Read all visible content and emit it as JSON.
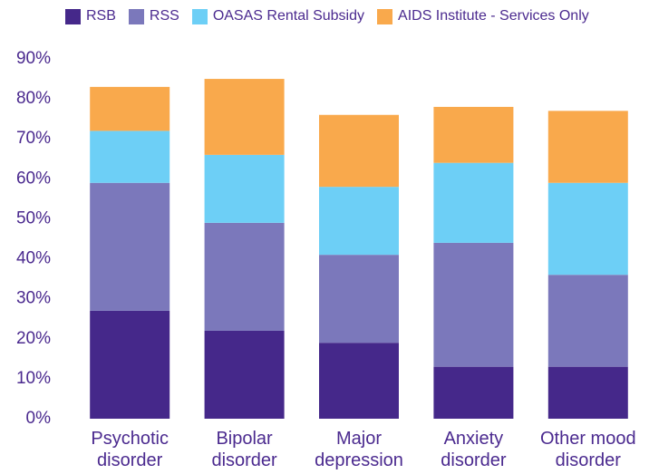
{
  "chart_data": {
    "type": "stacked_bar",
    "categories": [
      "Psychotic disorder",
      "Bipolar disorder",
      "Major depression",
      "Anxiety disorder",
      "Other mood disorder"
    ],
    "series": [
      {
        "name": "RSB",
        "color": "#45288a",
        "values": [
          27,
          22,
          19,
          13,
          13
        ]
      },
      {
        "name": "RSS",
        "color": "#7b78bb",
        "values": [
          32,
          27,
          22,
          31,
          23
        ]
      },
      {
        "name": "OASAS Rental Subsidy",
        "color": "#6dcff6",
        "values": [
          13,
          17,
          17,
          20,
          23
        ]
      },
      {
        "name": "AIDS Institute - Services Only",
        "color": "#f9a94c",
        "values": [
          11,
          19,
          18,
          14,
          18
        ]
      }
    ],
    "ylim": [
      0,
      90
    ],
    "yticks": [
      {
        "value": 0,
        "label": "0%"
      },
      {
        "value": 10,
        "label": "10%"
      },
      {
        "value": 20,
        "label": "20%"
      },
      {
        "value": 30,
        "label": "30%"
      },
      {
        "value": 40,
        "label": "40%"
      },
      {
        "value": 50,
        "label": "50%"
      },
      {
        "value": 60,
        "label": "60%"
      },
      {
        "value": 70,
        "label": "70%"
      },
      {
        "value": 80,
        "label": "80%"
      },
      {
        "value": 90,
        "label": "90%"
      }
    ],
    "legend": "top",
    "grid": false
  }
}
